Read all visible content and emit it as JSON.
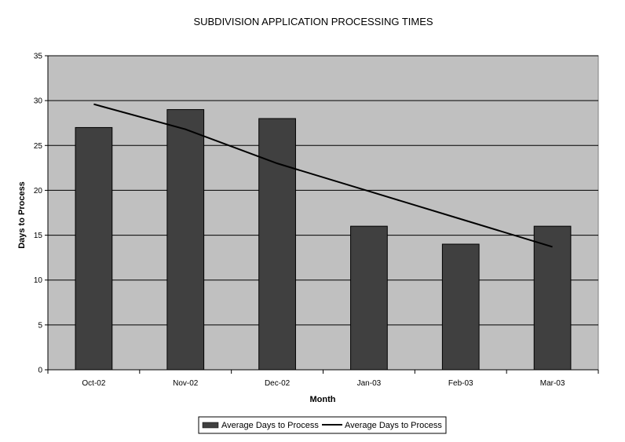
{
  "chart_data": {
    "type": "bar",
    "title": "SUBDIVISION APPLICATION PROCESSING TIMES",
    "xlabel": "Month",
    "ylabel": "Days to Process",
    "categories": [
      "Oct-02",
      "Nov-02",
      "Dec-02",
      "Jan-03",
      "Feb-03",
      "Mar-03"
    ],
    "ylim": [
      0,
      35
    ],
    "yticks": [
      0,
      5,
      10,
      15,
      20,
      25,
      30,
      35
    ],
    "grid": true,
    "legend_position": "bottom",
    "series": [
      {
        "name": "Average Days to Process",
        "type": "bar",
        "values": [
          27,
          29,
          28,
          16,
          14,
          16
        ],
        "color": "#404040"
      },
      {
        "name": "Average Days to Process",
        "type": "trendline",
        "values": [
          29.6,
          26.8,
          23.0,
          19.9,
          16.8,
          13.7
        ],
        "color": "#000000"
      }
    ],
    "plot_background": "#c0c0c0"
  }
}
